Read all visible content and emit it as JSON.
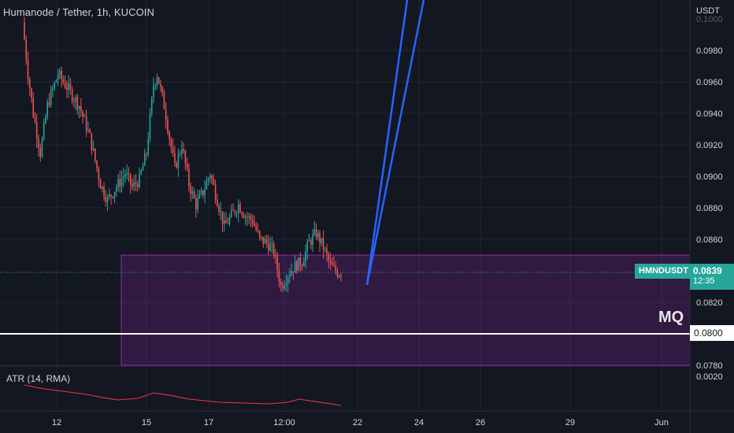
{
  "header": {
    "title": "Humanode / Tether, 1h, KUCOIN",
    "currency": "USDT"
  },
  "indicator": {
    "label": "ATR (14, RMA)"
  },
  "price_tag": {
    "symbol": "HMNDUSDT",
    "price": "0.0839",
    "countdown": "12:35",
    "color": "#26a69a"
  },
  "level_tag": {
    "price": "0.0800"
  },
  "zone": {
    "label": "MQ",
    "top_price": 0.085,
    "bottom_price": 0.078,
    "color": "#9c27b0"
  },
  "colors": {
    "background": "#131722",
    "up": "#26a69a",
    "down": "#ef5350",
    "projection": "#2962ff",
    "atr": "#f23645"
  },
  "chart_data": {
    "type": "candlestick",
    "title": "Humanode / Tether, 1h, KUCOIN",
    "x_ticks": [
      "12",
      "15",
      "17",
      "12:00",
      "22",
      "24",
      "26",
      "29",
      "Jun"
    ],
    "y_ticks": [
      "0.0980",
      "0.0960",
      "0.0940",
      "0.0920",
      "0.0900",
      "0.0880",
      "0.0860",
      "0.0820",
      "0.0800",
      "0.0780"
    ],
    "y_top_partial": "0.1000",
    "ylim": [
      0.0775,
      0.1005
    ],
    "price_anchors": [
      [
        0,
        0.0998
      ],
      [
        3,
        0.0965
      ],
      [
        6,
        0.094
      ],
      [
        10,
        0.0915
      ],
      [
        14,
        0.0945
      ],
      [
        20,
        0.0965
      ],
      [
        26,
        0.0955
      ],
      [
        32,
        0.0945
      ],
      [
        38,
        0.0925
      ],
      [
        44,
        0.0895
      ],
      [
        48,
        0.0885
      ],
      [
        54,
        0.0895
      ],
      [
        58,
        0.0902
      ],
      [
        62,
        0.0893
      ],
      [
        66,
        0.0898
      ],
      [
        70,
        0.0915
      ],
      [
        74,
        0.0958
      ],
      [
        76,
        0.0965
      ],
      [
        80,
        0.0945
      ],
      [
        86,
        0.0905
      ],
      [
        90,
        0.092
      ],
      [
        94,
        0.0895
      ],
      [
        98,
        0.0882
      ],
      [
        102,
        0.089
      ],
      [
        106,
        0.0902
      ],
      [
        110,
        0.0885
      ],
      [
        114,
        0.0868
      ],
      [
        118,
        0.0875
      ],
      [
        122,
        0.0882
      ],
      [
        126,
        0.0875
      ],
      [
        130,
        0.0872
      ],
      [
        134,
        0.086
      ],
      [
        138,
        0.0858
      ],
      [
        142,
        0.0852
      ],
      [
        146,
        0.083
      ],
      [
        150,
        0.0838
      ],
      [
        154,
        0.0843
      ],
      [
        158,
        0.0846
      ],
      [
        162,
        0.0858
      ],
      [
        166,
        0.0864
      ],
      [
        170,
        0.0855
      ],
      [
        174,
        0.0843
      ],
      [
        178,
        0.0839
      ]
    ],
    "atr_ticks": [
      "0.0020"
    ],
    "zone": {
      "top": 0.085,
      "bottom": 0.078
    },
    "horizontal_line": 0.08,
    "current_price": 0.0839,
    "projection_from": 0.0831
  }
}
